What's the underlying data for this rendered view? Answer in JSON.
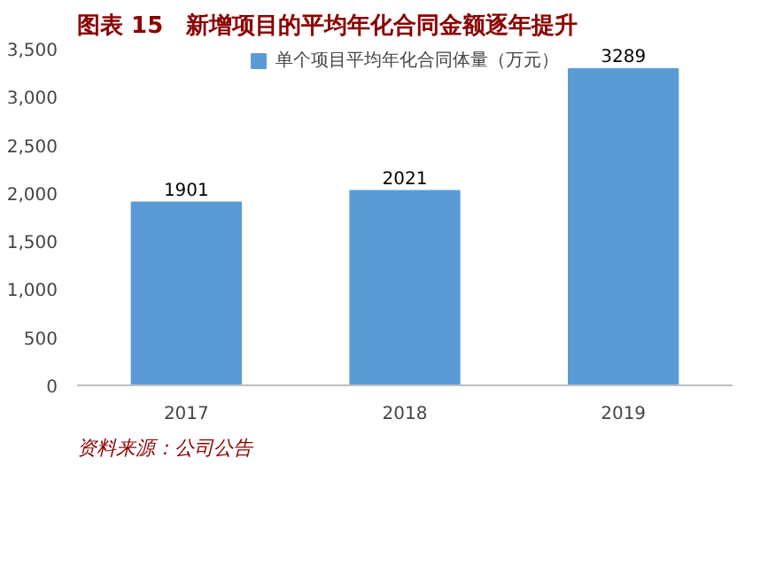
{
  "chart_data": {
    "type": "bar",
    "title": "图表 15　新增项目的平均年化合同金额逐年提升",
    "categories": [
      "2017",
      "2018",
      "2019"
    ],
    "series": [
      {
        "name": "单个项目平均年化合同体量（万元）",
        "color": "#5b9bd5",
        "values": [
          1901,
          2021,
          3289
        ]
      }
    ],
    "ylim": [
      0,
      3500
    ],
    "yticks": [
      0,
      {
        "value": 500,
        "label": "500"
      },
      {
        "value": 1000,
        "label": "1,000"
      },
      {
        "value": 1500,
        "label": "1,500"
      },
      {
        "value": 2000,
        "label": "2,000"
      },
      {
        "value": 2500,
        "label": "2,500"
      },
      {
        "value": 3000,
        "label": "3,000"
      },
      {
        "value": 3500,
        "label": "3,500"
      }
    ],
    "data_labels": true,
    "legend": "top",
    "grid": false,
    "annotations": [
      "资料来源：公司公告"
    ]
  }
}
